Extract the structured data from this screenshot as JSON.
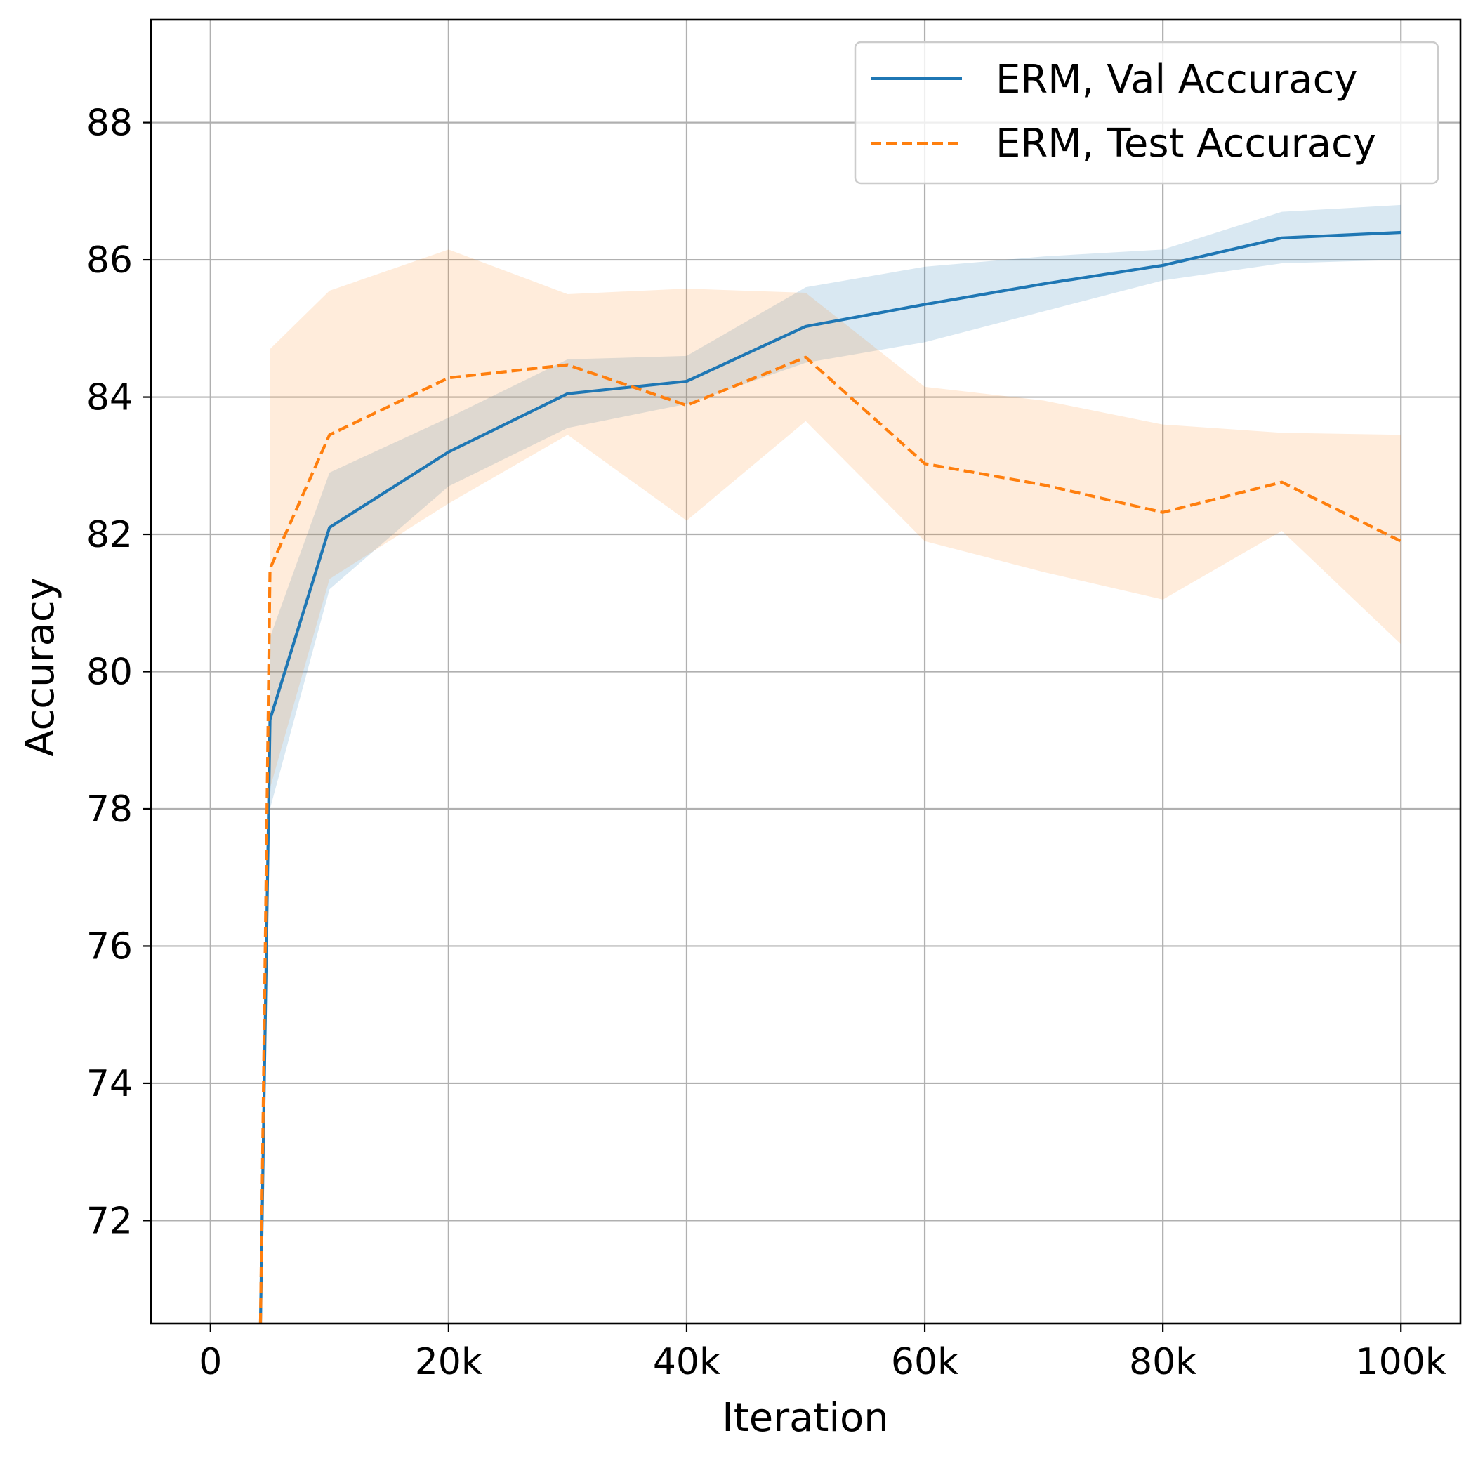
{
  "chart_data": {
    "type": "line",
    "title": "",
    "xlabel": "Iteration",
    "ylabel": "Accuracy",
    "xlim": [
      -5000,
      105000
    ],
    "ylim": [
      70.5,
      89.5
    ],
    "grid": true,
    "legend_position": "top-right",
    "x_ticks": [
      {
        "value": 0,
        "label": "0"
      },
      {
        "value": 20000,
        "label": "20k"
      },
      {
        "value": 40000,
        "label": "40k"
      },
      {
        "value": 60000,
        "label": "60k"
      },
      {
        "value": 80000,
        "label": "80k"
      },
      {
        "value": 100000,
        "label": "100k"
      }
    ],
    "y_ticks": [
      {
        "value": 72,
        "label": "72"
      },
      {
        "value": 74,
        "label": "74"
      },
      {
        "value": 76,
        "label": "76"
      },
      {
        "value": 78,
        "label": "78"
      },
      {
        "value": 80,
        "label": "80"
      },
      {
        "value": 82,
        "label": "82"
      },
      {
        "value": 84,
        "label": "84"
      },
      {
        "value": 86,
        "label": "86"
      },
      {
        "value": 88,
        "label": "88"
      }
    ],
    "series": [
      {
        "name": "ERM, Val Accuracy",
        "color": "#1f77b4",
        "style": "solid",
        "points": [
          {
            "x": 4200,
            "y": 70.5
          },
          {
            "x": 5000,
            "y": 79.3
          },
          {
            "x": 10000,
            "y": 82.1
          },
          {
            "x": 20000,
            "y": 83.2
          },
          {
            "x": 30000,
            "y": 84.05
          },
          {
            "x": 40000,
            "y": 84.23
          },
          {
            "x": 50000,
            "y": 85.03
          },
          {
            "x": 60000,
            "y": 85.35
          },
          {
            "x": 70000,
            "y": 85.65
          },
          {
            "x": 80000,
            "y": 85.92
          },
          {
            "x": 90000,
            "y": 86.32
          },
          {
            "x": 100000,
            "y": 86.4
          }
        ],
        "band": [
          {
            "x": 5000,
            "lo": 78.0,
            "hi": 80.5
          },
          {
            "x": 10000,
            "lo": 81.2,
            "hi": 82.9
          },
          {
            "x": 20000,
            "lo": 82.7,
            "hi": 83.7
          },
          {
            "x": 30000,
            "lo": 83.55,
            "hi": 84.55
          },
          {
            "x": 40000,
            "lo": 83.9,
            "hi": 84.6
          },
          {
            "x": 50000,
            "lo": 84.5,
            "hi": 85.6
          },
          {
            "x": 60000,
            "lo": 84.8,
            "hi": 85.9
          },
          {
            "x": 70000,
            "lo": 85.25,
            "hi": 86.05
          },
          {
            "x": 80000,
            "lo": 85.7,
            "hi": 86.15
          },
          {
            "x": 90000,
            "lo": 85.95,
            "hi": 86.7
          },
          {
            "x": 100000,
            "lo": 86.0,
            "hi": 86.8
          }
        ]
      },
      {
        "name": "ERM, Test Accuracy",
        "color": "#ff7f0e",
        "style": "dashed",
        "points": [
          {
            "x": 4200,
            "y": 70.5
          },
          {
            "x": 5000,
            "y": 81.5
          },
          {
            "x": 10000,
            "y": 83.45
          },
          {
            "x": 20000,
            "y": 84.28
          },
          {
            "x": 30000,
            "y": 84.47
          },
          {
            "x": 40000,
            "y": 83.88
          },
          {
            "x": 50000,
            "y": 84.58
          },
          {
            "x": 60000,
            "y": 83.03
          },
          {
            "x": 70000,
            "y": 82.72
          },
          {
            "x": 80000,
            "y": 82.32
          },
          {
            "x": 90000,
            "y": 82.76
          },
          {
            "x": 100000,
            "y": 81.9
          }
        ],
        "band": [
          {
            "x": 5000,
            "lo": 78.3,
            "hi": 84.7
          },
          {
            "x": 10000,
            "lo": 81.35,
            "hi": 85.55
          },
          {
            "x": 20000,
            "lo": 82.45,
            "hi": 86.15
          },
          {
            "x": 30000,
            "lo": 83.45,
            "hi": 85.5
          },
          {
            "x": 40000,
            "lo": 82.2,
            "hi": 85.58
          },
          {
            "x": 50000,
            "lo": 83.65,
            "hi": 85.52
          },
          {
            "x": 60000,
            "lo": 81.9,
            "hi": 84.15
          },
          {
            "x": 70000,
            "lo": 81.45,
            "hi": 83.95
          },
          {
            "x": 80000,
            "lo": 81.05,
            "hi": 83.6
          },
          {
            "x": 90000,
            "lo": 82.05,
            "hi": 83.48
          },
          {
            "x": 100000,
            "lo": 80.4,
            "hi": 83.45
          }
        ]
      }
    ]
  }
}
